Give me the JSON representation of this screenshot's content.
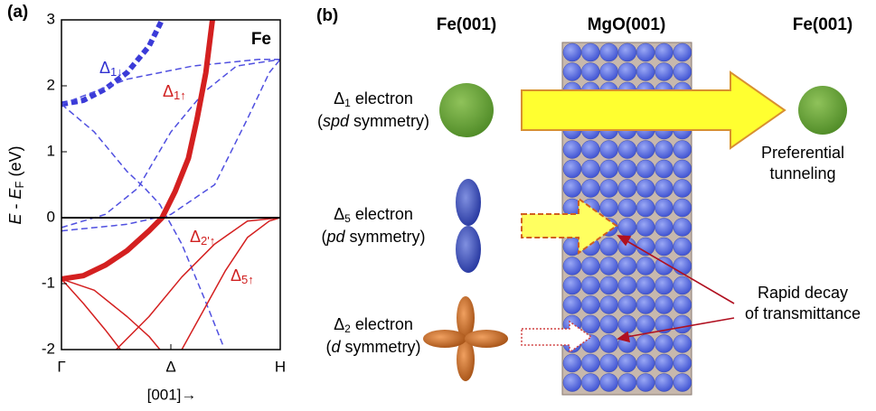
{
  "panel_a": {
    "label": "(a)",
    "material": "Fe",
    "y_label": {
      "e1": "E",
      "minus": " - ",
      "e2": "E",
      "sub": "F",
      "unit": " (eV)"
    },
    "ylim": [
      -2,
      3
    ],
    "yticks": [
      -2,
      -1,
      0,
      1,
      2,
      3
    ],
    "xlim": [
      0,
      1
    ],
    "x_points": [
      {
        "value": 0,
        "label": "Γ"
      },
      {
        "value": 0.5,
        "label": "Δ"
      },
      {
        "value": 1,
        "label": "H"
      }
    ],
    "x_label": "[001]→",
    "band_labels": [
      {
        "text": "Δ",
        "sub": "1↓",
        "color": "#3030d0"
      },
      {
        "text": "Δ",
        "sub": "1↑",
        "color": "#d02020"
      },
      {
        "text": "Δ",
        "sub": "2'↑",
        "color": "#d02020"
      },
      {
        "text": "Δ",
        "sub": "5↑",
        "color": "#d02020"
      }
    ],
    "bands": [
      {
        "color": "#3b3bd8",
        "style": "thick-dashed",
        "x": [
          0,
          0.1,
          0.2,
          0.3,
          0.4,
          0.46
        ],
        "values": [
          1.72,
          1.78,
          1.95,
          2.2,
          2.6,
          3
        ]
      },
      {
        "color": "#5050e0",
        "style": "dashed",
        "x": [
          0,
          0.15,
          0.3,
          0.38,
          0.45,
          0.55,
          0.65,
          0.74
        ],
        "values": [
          1.72,
          1.3,
          0.7,
          0.45,
          0.2,
          -0.4,
          -1.2,
          -1.95
        ]
      },
      {
        "color": "#5050e0",
        "style": "dashed",
        "x": [
          0,
          0.2,
          0.35,
          0.5,
          0.65,
          0.8,
          1
        ],
        "values": [
          -0.15,
          0.05,
          0.45,
          1.3,
          1.9,
          2.3,
          2.4
        ]
      },
      {
        "color": "#5050e0",
        "style": "dashed",
        "x": [
          0,
          0.3,
          0.5,
          0.7,
          0.85,
          0.95,
          1
        ],
        "values": [
          -0.2,
          -0.1,
          0.05,
          0.5,
          1.5,
          2.2,
          2.4
        ]
      },
      {
        "color": "#5050e0",
        "style": "dashed",
        "x": [
          0,
          0.3,
          0.6,
          0.9,
          1
        ],
        "values": [
          1.72,
          2.1,
          2.3,
          2.4,
          2.4
        ]
      },
      {
        "color": "#d42020",
        "style": "thick",
        "x": [
          0,
          0.1,
          0.2,
          0.3,
          0.4,
          0.46,
          0.52,
          0.58,
          0.62,
          0.66,
          0.69
        ],
        "values": [
          -0.93,
          -0.88,
          -0.72,
          -0.5,
          -0.2,
          0,
          0.4,
          0.9,
          1.5,
          2.2,
          3
        ]
      },
      {
        "color": "#d42020",
        "style": "thin",
        "x": [
          0,
          0.15,
          0.3,
          0.4,
          0.45
        ],
        "values": [
          -0.93,
          -1.1,
          -1.5,
          -1.8,
          -2
        ]
      },
      {
        "color": "#d42020",
        "style": "thin",
        "x": [
          0,
          0.1,
          0.2,
          0.27
        ],
        "values": [
          -0.93,
          -1.3,
          -1.7,
          -2
        ]
      },
      {
        "color": "#d42020",
        "style": "thin",
        "x": [
          0.25,
          0.4,
          0.55,
          0.7,
          0.85,
          1
        ],
        "values": [
          -2,
          -1.5,
          -0.9,
          -0.4,
          -0.05,
          0
        ]
      },
      {
        "color": "#d42020",
        "style": "thin",
        "x": [
          0.55,
          0.65,
          0.75,
          0.85,
          0.95,
          1
        ],
        "values": [
          -2,
          -1.4,
          -0.8,
          -0.3,
          -0.05,
          0
        ]
      }
    ]
  },
  "panel_b": {
    "label": "(b)",
    "headers": [
      "Fe(001)",
      "MgO(001)",
      "Fe(001)"
    ],
    "electrons": [
      {
        "symbol": "Δ",
        "sub": "1",
        "rest": " electron",
        "open": "(",
        "symmetry": "spd",
        "close": " symmetry)"
      },
      {
        "symbol": "Δ",
        "sub": "5",
        "rest": " electron",
        "open": "(",
        "symmetry": "pd",
        "close": " symmetry)"
      },
      {
        "symbol": "Δ",
        "sub": "2",
        "rest": " electron",
        "open": "(",
        "symmetry": "d",
        "close": " symmetry)"
      }
    ],
    "tunneling_note": [
      "Preferential",
      "tunneling"
    ],
    "decay_note": [
      "Rapid decay",
      "of transmittance"
    ]
  }
}
